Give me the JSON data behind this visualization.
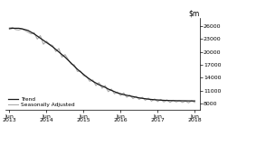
{
  "yticks": [
    8000,
    11000,
    14000,
    17000,
    20000,
    23000,
    26000
  ],
  "ylim": [
    6500,
    27800
  ],
  "xlim_start": 2013.3,
  "xlim_end": 2018.55,
  "xtick_positions": [
    2013.417,
    2014.417,
    2015.417,
    2016.417,
    2017.417,
    2018.417
  ],
  "xtick_labels": [
    "Jun\n2013",
    "Jun\n2014",
    "Jun\n2015",
    "Jun\n2016",
    "Jun\n2017",
    "Jun\n2018"
  ],
  "trend_color": "#1a1a1a",
  "seasonal_color": "#aaaaaa",
  "background_color": "#ffffff",
  "legend_labels": [
    "Trend",
    "Seasonally Adjusted"
  ],
  "trend_data_x": [
    2013.417,
    2013.5,
    2013.583,
    2013.667,
    2013.75,
    2013.833,
    2013.917,
    2014.0,
    2014.083,
    2014.167,
    2014.25,
    2014.333,
    2014.417,
    2014.5,
    2014.583,
    2014.667,
    2014.75,
    2014.833,
    2014.917,
    2015.0,
    2015.083,
    2015.167,
    2015.25,
    2015.333,
    2015.417,
    2015.5,
    2015.583,
    2015.667,
    2015.75,
    2015.833,
    2015.917,
    2016.0,
    2016.083,
    2016.167,
    2016.25,
    2016.333,
    2016.417,
    2016.5,
    2016.583,
    2016.667,
    2016.75,
    2016.833,
    2016.917,
    2017.0,
    2017.083,
    2017.167,
    2017.25,
    2017.333,
    2017.417,
    2017.5,
    2017.583,
    2017.667,
    2017.75,
    2017.833,
    2017.917,
    2018.0,
    2018.083,
    2018.167,
    2018.25,
    2018.333,
    2018.417
  ],
  "trend_data_y": [
    25400,
    25500,
    25500,
    25500,
    25400,
    25200,
    25000,
    24600,
    24200,
    23700,
    23200,
    22700,
    22200,
    21700,
    21200,
    20600,
    20000,
    19400,
    18800,
    18100,
    17400,
    16700,
    16000,
    15400,
    14800,
    14200,
    13700,
    13200,
    12800,
    12400,
    12100,
    11800,
    11400,
    11100,
    10800,
    10500,
    10300,
    10100,
    9950,
    9800,
    9650,
    9500,
    9350,
    9250,
    9150,
    9050,
    8980,
    8920,
    8870,
    8820,
    8780,
    8750,
    8730,
    8710,
    8700,
    8690,
    8680,
    8670,
    8660,
    8650,
    8640
  ],
  "seasonal_data_x": [
    2013.417,
    2013.5,
    2013.583,
    2013.667,
    2013.75,
    2013.833,
    2013.917,
    2014.0,
    2014.083,
    2014.167,
    2014.25,
    2014.333,
    2014.417,
    2014.5,
    2014.583,
    2014.667,
    2014.75,
    2014.833,
    2014.917,
    2015.0,
    2015.083,
    2015.167,
    2015.25,
    2015.333,
    2015.417,
    2015.5,
    2015.583,
    2015.667,
    2015.75,
    2015.833,
    2015.917,
    2016.0,
    2016.083,
    2016.167,
    2016.25,
    2016.333,
    2016.417,
    2016.5,
    2016.583,
    2016.667,
    2016.75,
    2016.833,
    2016.917,
    2017.0,
    2017.083,
    2017.167,
    2017.25,
    2017.333,
    2017.417,
    2017.5,
    2017.583,
    2017.667,
    2017.75,
    2017.833,
    2017.917,
    2018.0,
    2018.083,
    2018.167,
    2018.25,
    2018.333,
    2018.417
  ],
  "seasonal_data_y": [
    25600,
    25700,
    25200,
    25100,
    25300,
    25000,
    24600,
    24200,
    24500,
    23000,
    23800,
    21800,
    22500,
    21800,
    21500,
    20100,
    20800,
    18800,
    19400,
    18300,
    17200,
    17000,
    15500,
    15600,
    14500,
    14300,
    13200,
    13500,
    12200,
    12900,
    11600,
    12200,
    10800,
    11400,
    10300,
    10700,
    9900,
    10500,
    9500,
    10000,
    9200,
    9700,
    9000,
    9500,
    8800,
    9300,
    8600,
    9100,
    8500,
    9000,
    8400,
    8900,
    8300,
    8800,
    8400,
    8700,
    8300,
    8600,
    8200,
    8700,
    8300
  ]
}
